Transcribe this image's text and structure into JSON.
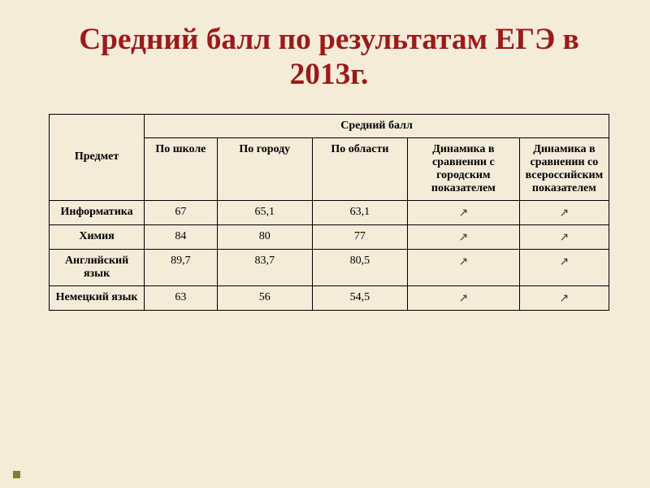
{
  "style": {
    "background_color": "#f4ebd8",
    "border_color": "#000000",
    "title_color": "#9a1a1a",
    "text_color": "#000000",
    "arrow_color": "#3a3a2a",
    "footer_square_color": "#8a7a3a",
    "title_fontsize_pt": 28,
    "header_fontsize_pt": 14,
    "cell_fontsize_pt": 14,
    "column_widths_pct": [
      17,
      13,
      17,
      17,
      20,
      16
    ]
  },
  "title": "Средний балл по результатам ЕГЭ в 2013г.",
  "table": {
    "corner_label": "Предмет",
    "super_header": "Средний балл",
    "sub_headers": [
      "По школе",
      "По городу",
      "По области",
      "Динамика в сравнении с городским показателем",
      "Динамика в сравнении со всероссийским показателем"
    ],
    "rows": [
      {
        "label": "Информатика",
        "cells": [
          "67",
          "65,1",
          "63,1",
          "↗",
          "↗"
        ]
      },
      {
        "label": "Химия",
        "cells": [
          "84",
          "80",
          "77",
          "↗",
          "↗"
        ]
      },
      {
        "label": "Английский язык",
        "cells": [
          "89,7",
          "83,7",
          "80,5",
          "↗",
          "↗"
        ]
      },
      {
        "label": "Немецкий язык",
        "cells": [
          "63",
          "56",
          "54,5",
          "↗",
          "↗"
        ]
      }
    ]
  }
}
